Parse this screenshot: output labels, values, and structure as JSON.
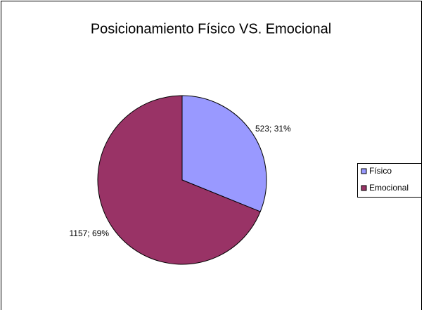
{
  "chart_data": {
    "type": "pie",
    "title": "Posicionamiento Físico VS. Emocional",
    "categories": [
      "Físico",
      "Emocional"
    ],
    "values": [
      523,
      1157
    ],
    "value_labels": [
      "523; 31%",
      "1157; 69%"
    ],
    "colors": [
      "#9999ff",
      "#993366"
    ],
    "legend": "right"
  }
}
